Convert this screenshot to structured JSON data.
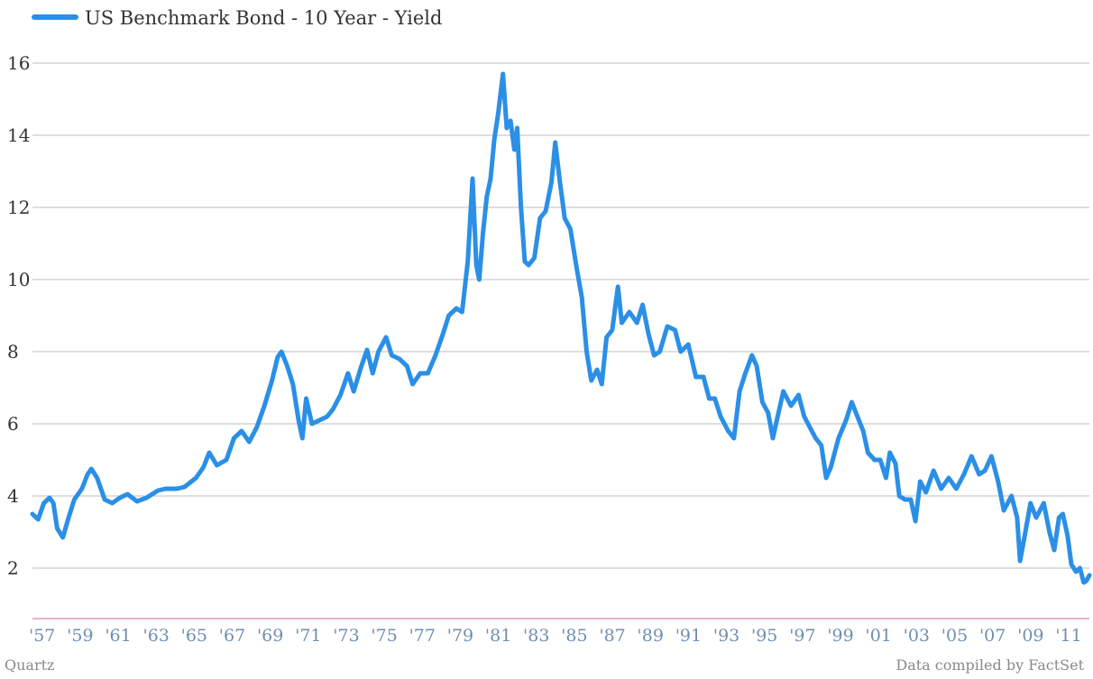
{
  "source_left": "Quartz",
  "source_right": "Data compiled by FactSet",
  "colors": {
    "series": "#2b8fe6",
    "grid": "#bdbdbd",
    "baseline": "#d980b5",
    "xtick": "#6f8fb0"
  },
  "chart_data": {
    "type": "line",
    "legend_position": "top-left",
    "grid": true,
    "ylim": [
      0.6,
      17.0
    ],
    "xlim": [
      1957.0,
      2012.6
    ],
    "yticks": [
      2,
      4,
      6,
      8,
      10,
      12,
      14,
      16
    ],
    "ytick_labels": [
      "2",
      "4",
      "6",
      "8",
      "10",
      "12",
      "14",
      "16"
    ],
    "xticks": [
      1957,
      1959,
      1961,
      1963,
      1965,
      1967,
      1969,
      1971,
      1973,
      1975,
      1977,
      1979,
      1981,
      1983,
      1985,
      1987,
      1989,
      1991,
      1993,
      1995,
      1997,
      1999,
      2001,
      2003,
      2005,
      2007,
      2009,
      2011
    ],
    "xtick_labels": [
      "'57",
      "'59",
      "'61",
      "'63",
      "'65",
      "'67",
      "'69",
      "'71",
      "'73",
      "'75",
      "'77",
      "'79",
      "'81",
      "'83",
      "'85",
      "'87",
      "'89",
      "'91",
      "'93",
      "'95",
      "'97",
      "'99",
      "'01",
      "'03",
      "'05",
      "'07",
      "'09",
      "'11"
    ],
    "series": [
      {
        "name": "US Benchmark Bond - 10 Year - Yield",
        "points": [
          [
            1957.0,
            3.5
          ],
          [
            1957.3,
            3.35
          ],
          [
            1957.6,
            3.8
          ],
          [
            1957.9,
            3.95
          ],
          [
            1958.1,
            3.8
          ],
          [
            1958.3,
            3.1
          ],
          [
            1958.6,
            2.85
          ],
          [
            1958.9,
            3.4
          ],
          [
            1959.2,
            3.9
          ],
          [
            1959.6,
            4.2
          ],
          [
            1959.9,
            4.6
          ],
          [
            1960.1,
            4.75
          ],
          [
            1960.4,
            4.5
          ],
          [
            1960.8,
            3.9
          ],
          [
            1961.2,
            3.8
          ],
          [
            1961.6,
            3.95
          ],
          [
            1962.0,
            4.05
          ],
          [
            1962.5,
            3.85
          ],
          [
            1963.0,
            3.95
          ],
          [
            1963.6,
            4.15
          ],
          [
            1964.0,
            4.2
          ],
          [
            1964.6,
            4.2
          ],
          [
            1965.0,
            4.25
          ],
          [
            1965.6,
            4.5
          ],
          [
            1966.0,
            4.8
          ],
          [
            1966.3,
            5.2
          ],
          [
            1966.7,
            4.85
          ],
          [
            1967.2,
            5.0
          ],
          [
            1967.6,
            5.6
          ],
          [
            1968.0,
            5.8
          ],
          [
            1968.4,
            5.5
          ],
          [
            1968.8,
            5.9
          ],
          [
            1969.2,
            6.5
          ],
          [
            1969.6,
            7.2
          ],
          [
            1969.9,
            7.85
          ],
          [
            1970.1,
            8.0
          ],
          [
            1970.4,
            7.6
          ],
          [
            1970.7,
            7.1
          ],
          [
            1971.0,
            6.1
          ],
          [
            1971.2,
            5.6
          ],
          [
            1971.4,
            6.7
          ],
          [
            1971.7,
            6.0
          ],
          [
            1972.1,
            6.1
          ],
          [
            1972.5,
            6.2
          ],
          [
            1972.8,
            6.4
          ],
          [
            1973.2,
            6.8
          ],
          [
            1973.6,
            7.4
          ],
          [
            1973.9,
            6.9
          ],
          [
            1974.3,
            7.6
          ],
          [
            1974.6,
            8.05
          ],
          [
            1974.9,
            7.4
          ],
          [
            1975.2,
            8.0
          ],
          [
            1975.6,
            8.4
          ],
          [
            1975.9,
            7.9
          ],
          [
            1976.3,
            7.8
          ],
          [
            1976.7,
            7.6
          ],
          [
            1977.0,
            7.1
          ],
          [
            1977.4,
            7.4
          ],
          [
            1977.8,
            7.4
          ],
          [
            1978.2,
            7.9
          ],
          [
            1978.6,
            8.5
          ],
          [
            1978.9,
            9.0
          ],
          [
            1979.3,
            9.2
          ],
          [
            1979.6,
            9.1
          ],
          [
            1979.9,
            10.5
          ],
          [
            1980.15,
            12.8
          ],
          [
            1980.35,
            10.4
          ],
          [
            1980.5,
            10.0
          ],
          [
            1980.7,
            11.3
          ],
          [
            1980.9,
            12.3
          ],
          [
            1981.1,
            12.8
          ],
          [
            1981.3,
            13.9
          ],
          [
            1981.5,
            14.6
          ],
          [
            1981.75,
            15.7
          ],
          [
            1981.95,
            14.2
          ],
          [
            1982.15,
            14.4
          ],
          [
            1982.35,
            13.6
          ],
          [
            1982.5,
            14.2
          ],
          [
            1982.7,
            12.0
          ],
          [
            1982.9,
            10.5
          ],
          [
            1983.1,
            10.4
          ],
          [
            1983.4,
            10.6
          ],
          [
            1983.7,
            11.7
          ],
          [
            1984.0,
            11.9
          ],
          [
            1984.3,
            12.7
          ],
          [
            1984.5,
            13.8
          ],
          [
            1984.75,
            12.7
          ],
          [
            1985.0,
            11.7
          ],
          [
            1985.3,
            11.4
          ],
          [
            1985.6,
            10.4
          ],
          [
            1985.9,
            9.5
          ],
          [
            1986.15,
            8.0
          ],
          [
            1986.4,
            7.2
          ],
          [
            1986.7,
            7.5
          ],
          [
            1986.95,
            7.1
          ],
          [
            1987.2,
            8.4
          ],
          [
            1987.5,
            8.6
          ],
          [
            1987.8,
            9.8
          ],
          [
            1988.0,
            8.8
          ],
          [
            1988.4,
            9.1
          ],
          [
            1988.8,
            8.8
          ],
          [
            1989.1,
            9.3
          ],
          [
            1989.4,
            8.5
          ],
          [
            1989.7,
            7.9
          ],
          [
            1990.0,
            8.0
          ],
          [
            1990.4,
            8.7
          ],
          [
            1990.8,
            8.6
          ],
          [
            1991.1,
            8.0
          ],
          [
            1991.5,
            8.2
          ],
          [
            1991.9,
            7.3
          ],
          [
            1992.3,
            7.3
          ],
          [
            1992.6,
            6.7
          ],
          [
            1992.9,
            6.7
          ],
          [
            1993.2,
            6.2
          ],
          [
            1993.6,
            5.8
          ],
          [
            1993.9,
            5.6
          ],
          [
            1994.2,
            6.9
          ],
          [
            1994.5,
            7.4
          ],
          [
            1994.85,
            7.9
          ],
          [
            1995.1,
            7.6
          ],
          [
            1995.4,
            6.6
          ],
          [
            1995.7,
            6.3
          ],
          [
            1995.95,
            5.6
          ],
          [
            1996.2,
            6.2
          ],
          [
            1996.5,
            6.9
          ],
          [
            1996.9,
            6.5
          ],
          [
            1997.3,
            6.8
          ],
          [
            1997.6,
            6.2
          ],
          [
            1997.9,
            5.9
          ],
          [
            1998.2,
            5.6
          ],
          [
            1998.5,
            5.4
          ],
          [
            1998.75,
            4.5
          ],
          [
            1999.0,
            4.8
          ],
          [
            1999.4,
            5.6
          ],
          [
            1999.8,
            6.1
          ],
          [
            2000.1,
            6.6
          ],
          [
            2000.4,
            6.2
          ],
          [
            2000.7,
            5.8
          ],
          [
            2000.95,
            5.2
          ],
          [
            2001.3,
            5.0
          ],
          [
            2001.6,
            5.0
          ],
          [
            2001.9,
            4.5
          ],
          [
            2002.1,
            5.2
          ],
          [
            2002.4,
            4.9
          ],
          [
            2002.6,
            4.0
          ],
          [
            2002.9,
            3.9
          ],
          [
            2003.2,
            3.9
          ],
          [
            2003.45,
            3.3
          ],
          [
            2003.7,
            4.4
          ],
          [
            2004.0,
            4.1
          ],
          [
            2004.4,
            4.7
          ],
          [
            2004.8,
            4.2
          ],
          [
            2005.2,
            4.5
          ],
          [
            2005.6,
            4.2
          ],
          [
            2006.0,
            4.6
          ],
          [
            2006.4,
            5.1
          ],
          [
            2006.8,
            4.6
          ],
          [
            2007.1,
            4.7
          ],
          [
            2007.45,
            5.1
          ],
          [
            2007.8,
            4.4
          ],
          [
            2008.1,
            3.6
          ],
          [
            2008.5,
            4.0
          ],
          [
            2008.8,
            3.4
          ],
          [
            2008.95,
            2.2
          ],
          [
            2009.2,
            2.9
          ],
          [
            2009.5,
            3.8
          ],
          [
            2009.8,
            3.4
          ],
          [
            2010.2,
            3.8
          ],
          [
            2010.5,
            3.0
          ],
          [
            2010.75,
            2.5
          ],
          [
            2011.0,
            3.4
          ],
          [
            2011.2,
            3.5
          ],
          [
            2011.45,
            2.9
          ],
          [
            2011.65,
            2.1
          ],
          [
            2011.9,
            1.9
          ],
          [
            2012.1,
            2.0
          ],
          [
            2012.3,
            1.6
          ],
          [
            2012.45,
            1.65
          ],
          [
            2012.6,
            1.8
          ]
        ]
      }
    ]
  }
}
